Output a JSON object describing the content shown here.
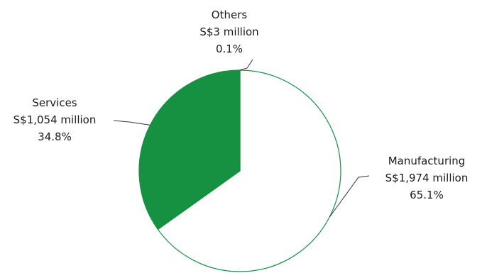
{
  "chart_data": {
    "type": "pie",
    "title": "",
    "slices": [
      {
        "name": "Manufacturing",
        "value_text": "S$1,974 million",
        "value": 1974,
        "percent_text": "65.1%",
        "percent": 65.1,
        "fill": "#ffffff"
      },
      {
        "name": "Services",
        "value_text": "S$1,054 million",
        "value": 1054,
        "percent_text": "34.8%",
        "percent": 34.8,
        "fill": "#169142"
      },
      {
        "name": "Others",
        "value_text": "S$3 million",
        "value": 3,
        "percent_text": "0.1%",
        "percent": 0.1,
        "fill": "#ffffff"
      }
    ],
    "colors": {
      "accent": "#169142",
      "outline": "#169142",
      "leader": "#333333"
    }
  }
}
